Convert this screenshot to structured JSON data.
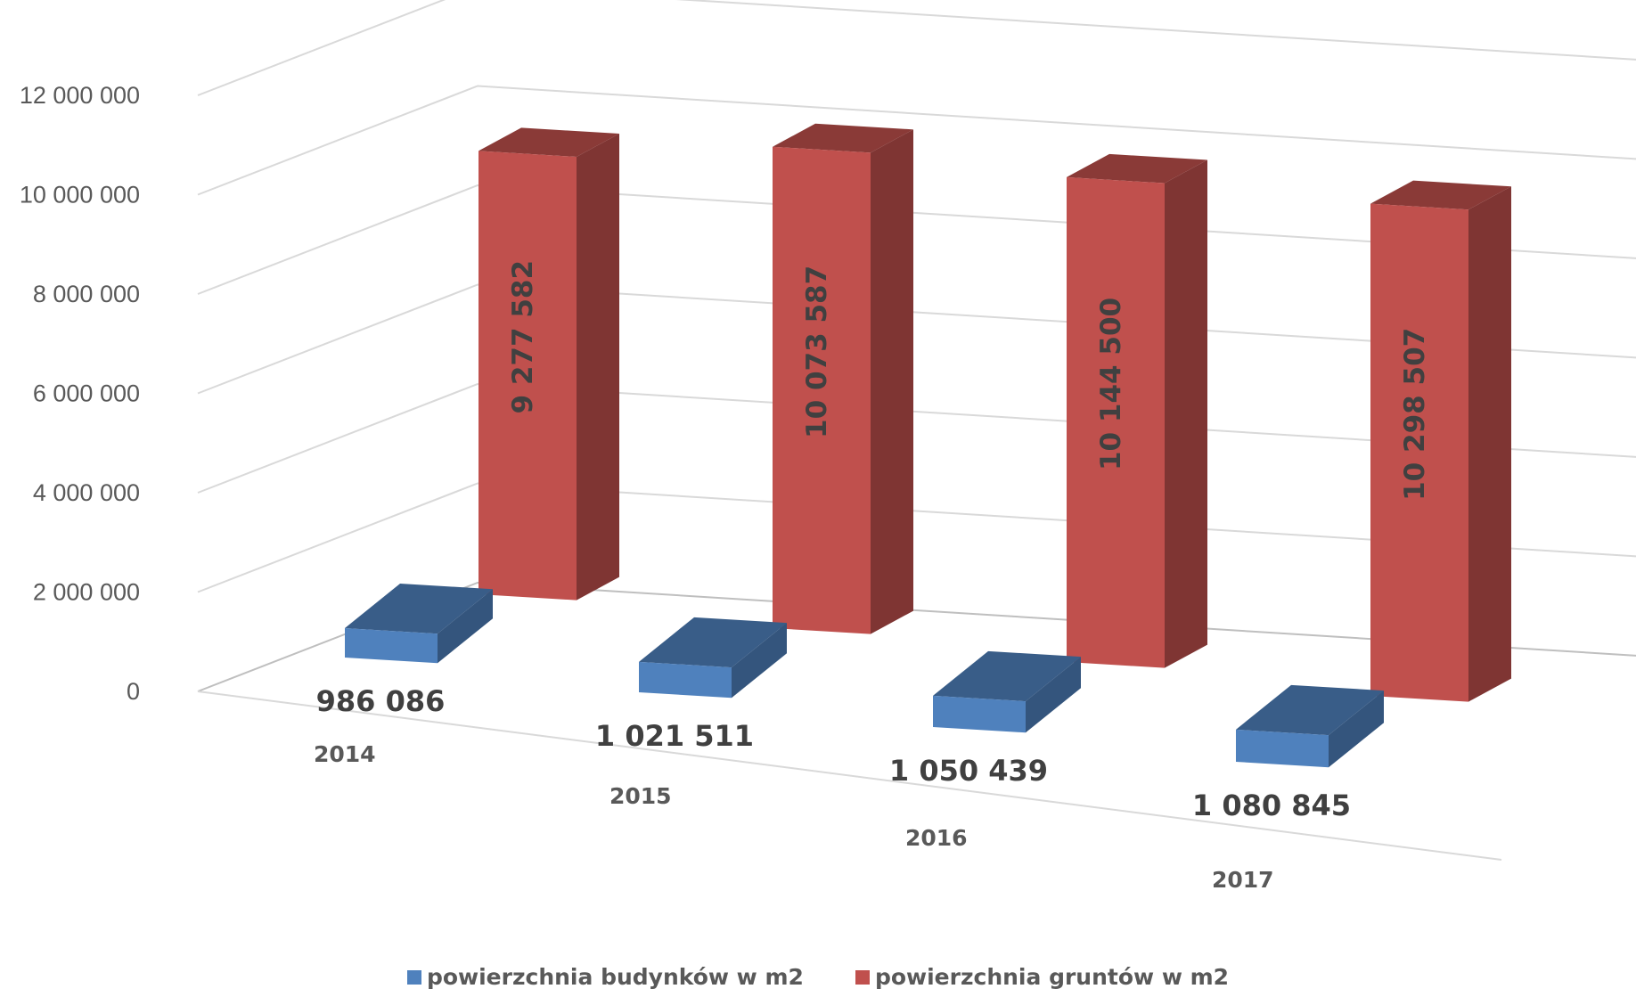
{
  "chart_data": {
    "type": "bar",
    "style": "3d-clustered-column",
    "categories": [
      "2014",
      "2015",
      "2016",
      "2017"
    ],
    "series": [
      {
        "name": "powierzchnia budynków w m2",
        "color": "#4F81BD",
        "values": [
          986086,
          1021511,
          1050439,
          1080845
        ],
        "labels": [
          "986 086",
          "1 021 511",
          "1 050 439",
          "1 080 845"
        ]
      },
      {
        "name": "powierzchnia gruntów w m2",
        "color": "#C0504D",
        "values": [
          9277582,
          10073587,
          10144500,
          10298507
        ],
        "labels": [
          "9 277 582",
          "10 073 587",
          "10 144 500",
          "10 298 507"
        ]
      }
    ],
    "yticks": [
      "0",
      "2 000 000",
      "4 000 000",
      "6 000 000",
      "8 000 000",
      "10 000 000",
      "12 000 000"
    ],
    "ylim": [
      0,
      12000000
    ],
    "grid": true,
    "legend_position": "bottom"
  }
}
